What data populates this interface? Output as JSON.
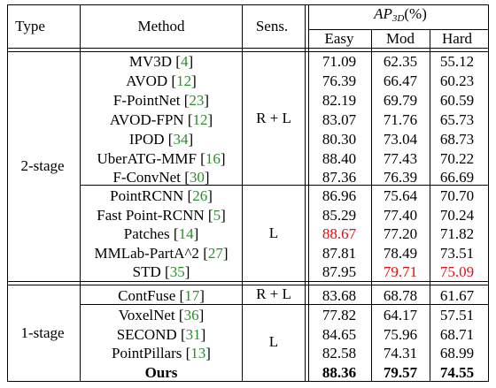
{
  "table": {
    "headers": {
      "type": "Type",
      "method": "Method",
      "sens": "Sens.",
      "ap_prefix": "AP",
      "ap_sub": "3D",
      "ap_suffix": "(%)",
      "easy": "Easy",
      "mod": "Mod",
      "hard": "Hard"
    },
    "groups": [
      {
        "type": "2-stage",
        "subgroups": [
          {
            "sens": "R + L",
            "rows": [
              {
                "method": "MV3D",
                "ref": "4",
                "easy": "71.09",
                "mod": "62.35",
                "hard": "55.12"
              },
              {
                "method": "AVOD",
                "ref": "12",
                "easy": "76.39",
                "mod": "66.47",
                "hard": "60.23"
              },
              {
                "method": "F-PointNet",
                "ref": "23",
                "easy": "82.19",
                "mod": "69.79",
                "hard": "60.59"
              },
              {
                "method": "AVOD-FPN",
                "ref": "12",
                "easy": "83.07",
                "mod": "71.76",
                "hard": "65.73"
              },
              {
                "method": "IPOD",
                "ref": "34",
                "easy": "80.30",
                "mod": "73.04",
                "hard": "68.73"
              },
              {
                "method": "UberATG-MMF",
                "ref": "16",
                "easy": "88.40",
                "mod": "77.43",
                "hard": "70.22"
              },
              {
                "method": "F-ConvNet",
                "ref": "30",
                "easy": "87.36",
                "mod": "76.39",
                "hard": "66.69"
              }
            ]
          },
          {
            "sens": "L",
            "rows": [
              {
                "method": "PointRCNN",
                "ref": "26",
                "easy": "86.96",
                "mod": "75.64",
                "hard": "70.70"
              },
              {
                "method": "Fast Point-RCNN",
                "ref": "5",
                "easy": "85.29",
                "mod": "77.40",
                "hard": "70.24"
              },
              {
                "method": "Patches",
                "ref": "14",
                "easy": "88.67",
                "mod": "77.20",
                "hard": "71.82",
                "red": [
                  "easy"
                ]
              },
              {
                "method": "MMLab-PartA^2",
                "ref": "27",
                "easy": "87.81",
                "mod": "78.49",
                "hard": "73.51"
              },
              {
                "method": "STD",
                "ref": "35",
                "easy": "87.95",
                "mod": "79.71",
                "hard": "75.09",
                "red": [
                  "mod",
                  "hard"
                ]
              }
            ]
          }
        ]
      },
      {
        "type": "1-stage",
        "subgroups": [
          {
            "sens": "R + L",
            "rows": [
              {
                "method": "ContFuse",
                "ref": "17",
                "easy": "83.68",
                "mod": "68.78",
                "hard": "61.67"
              }
            ]
          },
          {
            "sens": "L",
            "rows": [
              {
                "method": "VoxelNet",
                "ref": "36",
                "easy": "77.82",
                "mod": "64.17",
                "hard": "57.51"
              },
              {
                "method": "SECOND",
                "ref": "31",
                "easy": "84.65",
                "mod": "75.96",
                "hard": "68.71"
              },
              {
                "method": "PointPillars",
                "ref": "13",
                "easy": "82.58",
                "mod": "74.31",
                "hard": "68.99"
              },
              {
                "method": "Ours",
                "ref": "",
                "easy": "88.36",
                "mod": "79.57",
                "hard": "74.55",
                "bold": true
              }
            ]
          }
        ]
      }
    ]
  },
  "colors": {
    "citation": "#2e8b2e",
    "highlight": "#e01010",
    "rule": "#000000"
  }
}
